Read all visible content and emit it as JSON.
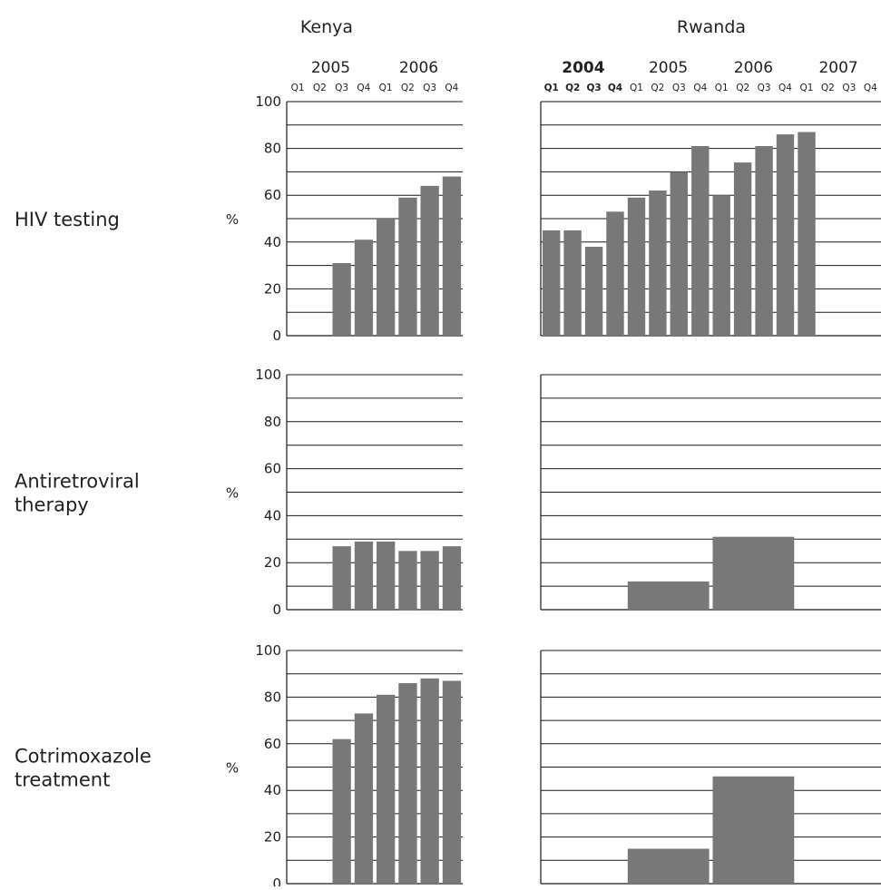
{
  "colors": {
    "bar": "#787878",
    "grid": "#1a1a1a",
    "text": "#222222"
  },
  "columns": [
    {
      "country": "Kenya",
      "years": [
        "2005",
        "2006"
      ],
      "quarters": [
        "Q1",
        "Q2",
        "Q3",
        "Q4",
        "Q1",
        "Q2",
        "Q3",
        "Q4"
      ],
      "bold_year": ""
    },
    {
      "country": "Rwanda",
      "years": [
        "2004",
        "2005",
        "2006",
        "2007"
      ],
      "quarters": [
        "Q1",
        "Q2",
        "Q3",
        "Q4",
        "Q1",
        "Q2",
        "Q3",
        "Q4",
        "Q1",
        "Q2",
        "Q3",
        "Q4",
        "Q1",
        "Q2",
        "Q3",
        "Q4"
      ],
      "bold_year": "2004"
    }
  ],
  "rows": [
    {
      "label_lines": [
        "HIV testing"
      ],
      "unit": "%"
    },
    {
      "label_lines": [
        "Antiretroviral",
        "therapy"
      ],
      "unit": "%"
    },
    {
      "label_lines": [
        "Cotrimoxazole",
        "treatment"
      ],
      "unit": "%"
    }
  ],
  "chart_data": [
    {
      "type": "bar",
      "row": "HIV testing",
      "country": "Kenya",
      "categories": [
        "2005 Q1",
        "2005 Q2",
        "2005 Q3",
        "2005 Q4",
        "2006 Q1",
        "2006 Q2",
        "2006 Q3",
        "2006 Q4"
      ],
      "bars": [
        {
          "from": 2,
          "to": 2,
          "value": 31
        },
        {
          "from": 3,
          "to": 3,
          "value": 41
        },
        {
          "from": 4,
          "to": 4,
          "value": 50
        },
        {
          "from": 5,
          "to": 5,
          "value": 59
        },
        {
          "from": 6,
          "to": 6,
          "value": 64
        },
        {
          "from": 7,
          "to": 7,
          "value": 68
        }
      ],
      "ylim": [
        0,
        100
      ],
      "yticks": [
        0,
        20,
        40,
        60,
        80,
        100
      ],
      "ylabel": "%"
    },
    {
      "type": "bar",
      "row": "HIV testing",
      "country": "Rwanda",
      "categories": [
        "2004 Q1",
        "2004 Q2",
        "2004 Q3",
        "2004 Q4",
        "2005 Q1",
        "2005 Q2",
        "2005 Q3",
        "2005 Q4",
        "2006 Q1",
        "2006 Q2",
        "2006 Q3",
        "2006 Q4",
        "2007 Q1",
        "2007 Q2",
        "2007 Q3",
        "2007 Q4"
      ],
      "bars": [
        {
          "from": 0,
          "to": 0,
          "value": 45
        },
        {
          "from": 1,
          "to": 1,
          "value": 45
        },
        {
          "from": 2,
          "to": 2,
          "value": 38
        },
        {
          "from": 3,
          "to": 3,
          "value": 53
        },
        {
          "from": 4,
          "to": 4,
          "value": 59
        },
        {
          "from": 5,
          "to": 5,
          "value": 62
        },
        {
          "from": 6,
          "to": 6,
          "value": 70
        },
        {
          "from": 7,
          "to": 7,
          "value": 81
        },
        {
          "from": 8,
          "to": 8,
          "value": 60
        },
        {
          "from": 9,
          "to": 9,
          "value": 74
        },
        {
          "from": 10,
          "to": 10,
          "value": 81
        },
        {
          "from": 11,
          "to": 11,
          "value": 86
        },
        {
          "from": 12,
          "to": 12,
          "value": 87
        }
      ],
      "ylim": [
        0,
        100
      ],
      "yticks": [
        0,
        20,
        40,
        60,
        80,
        100
      ]
    },
    {
      "type": "bar",
      "row": "Antiretroviral therapy",
      "country": "Kenya",
      "categories": [
        "2005 Q1",
        "2005 Q2",
        "2005 Q3",
        "2005 Q4",
        "2006 Q1",
        "2006 Q2",
        "2006 Q3",
        "2006 Q4"
      ],
      "bars": [
        {
          "from": 2,
          "to": 2,
          "value": 27
        },
        {
          "from": 3,
          "to": 3,
          "value": 29
        },
        {
          "from": 4,
          "to": 4,
          "value": 29
        },
        {
          "from": 5,
          "to": 5,
          "value": 25
        },
        {
          "from": 6,
          "to": 6,
          "value": 25
        },
        {
          "from": 7,
          "to": 7,
          "value": 27
        }
      ],
      "ylim": [
        0,
        100
      ],
      "yticks": [
        0,
        20,
        40,
        60,
        80,
        100
      ],
      "ylabel": "%"
    },
    {
      "type": "bar",
      "row": "Antiretroviral therapy",
      "country": "Rwanda",
      "categories": [
        "2004 Q1",
        "2004 Q2",
        "2004 Q3",
        "2004 Q4",
        "2005 Q1",
        "2005 Q2",
        "2005 Q3",
        "2005 Q4",
        "2006 Q1",
        "2006 Q2",
        "2006 Q3",
        "2006 Q4",
        "2007 Q1",
        "2007 Q2",
        "2007 Q3",
        "2007 Q4"
      ],
      "bars": [
        {
          "from": 4,
          "to": 7,
          "value": 12
        },
        {
          "from": 8,
          "to": 11,
          "value": 31
        }
      ],
      "ylim": [
        0,
        100
      ],
      "yticks": [
        0,
        20,
        40,
        60,
        80,
        100
      ]
    },
    {
      "type": "bar",
      "row": "Cotrimoxazole treatment",
      "country": "Kenya",
      "categories": [
        "2005 Q1",
        "2005 Q2",
        "2005 Q3",
        "2005 Q4",
        "2006 Q1",
        "2006 Q2",
        "2006 Q3",
        "2006 Q4"
      ],
      "bars": [
        {
          "from": 2,
          "to": 2,
          "value": 62
        },
        {
          "from": 3,
          "to": 3,
          "value": 73
        },
        {
          "from": 4,
          "to": 4,
          "value": 81
        },
        {
          "from": 5,
          "to": 5,
          "value": 86
        },
        {
          "from": 6,
          "to": 6,
          "value": 88
        },
        {
          "from": 7,
          "to": 7,
          "value": 87
        }
      ],
      "ylim": [
        0,
        100
      ],
      "yticks": [
        0,
        20,
        40,
        60,
        80,
        100
      ],
      "ylabel": "%"
    },
    {
      "type": "bar",
      "row": "Cotrimoxazole treatment",
      "country": "Rwanda",
      "categories": [
        "2004 Q1",
        "2004 Q2",
        "2004 Q3",
        "2004 Q4",
        "2005 Q1",
        "2005 Q2",
        "2005 Q3",
        "2005 Q4",
        "2006 Q1",
        "2006 Q2",
        "2006 Q3",
        "2006 Q4",
        "2007 Q1",
        "2007 Q2",
        "2007 Q3",
        "2007 Q4"
      ],
      "bars": [
        {
          "from": 4,
          "to": 7,
          "value": 15
        },
        {
          "from": 8,
          "to": 11,
          "value": 46
        }
      ],
      "ylim": [
        0,
        100
      ],
      "yticks": [
        0,
        20,
        40,
        60,
        80,
        100
      ]
    }
  ]
}
